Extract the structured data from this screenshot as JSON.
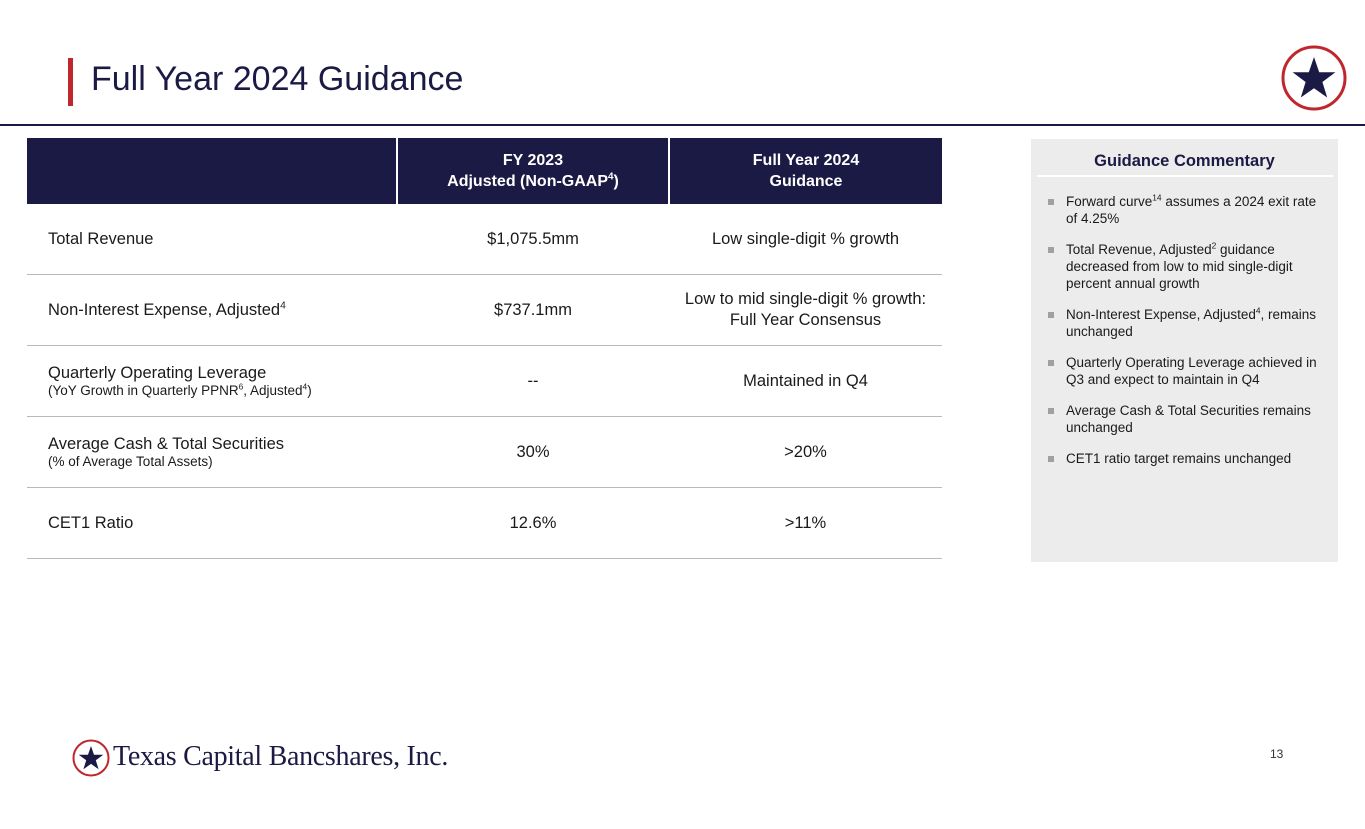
{
  "page": {
    "title": "Full Year 2024 Guidance",
    "page_number": "13"
  },
  "table": {
    "headers": [
      {
        "line1": "",
        "line2": ""
      },
      {
        "line1": "FY 2023",
        "line2": "Adjusted (Non-GAAP",
        "sup": "4",
        "tail": ")"
      },
      {
        "line1": "Full Year 2024",
        "line2": "Guidance"
      }
    ],
    "rows": [
      {
        "label": "Total Revenue",
        "fy2023": "$1,075.5mm",
        "guidance": "Low single-digit % growth"
      },
      {
        "label": "Non-Interest Expense, Adjusted",
        "label_sup": "4",
        "fy2023": "$737.1mm",
        "guidance_line1": "Low to mid single-digit % growth:",
        "guidance_line2": "Full Year Consensus"
      },
      {
        "label": "Quarterly Operating Leverage",
        "sub_a": "(YoY Growth in Quarterly PPNR",
        "sub_sup1": "6",
        "sub_b": ", Adjusted",
        "sub_sup2": "4",
        "sub_c": ")",
        "fy2023": "--",
        "guidance": "Maintained in Q4"
      },
      {
        "label": "Average Cash & Total Securities",
        "sub": "(% of Average Total Assets)",
        "fy2023": "30%",
        "guidance": ">20%"
      },
      {
        "label": "CET1 Ratio",
        "fy2023": "12.6%",
        "guidance": ">11%"
      }
    ]
  },
  "commentary": {
    "title": "Guidance Commentary",
    "bullets": [
      {
        "a": "Forward curve",
        "sup": "14",
        "b": " assumes a 2024 exit rate of 4.25%"
      },
      {
        "a": "Total Revenue, Adjusted",
        "sup": "2",
        "b": " guidance decreased from low to mid single-digit percent annual growth"
      },
      {
        "a": "Non-Interest Expense, Adjusted",
        "sup": "4",
        "b": ", remains unchanged"
      },
      {
        "a": "Quarterly Operating Leverage achieved in Q3 and expect to maintain in Q4",
        "sup": "",
        "b": ""
      },
      {
        "a": "Average Cash & Total Securities remains unchanged",
        "sup": "",
        "b": ""
      },
      {
        "a": "CET1 ratio target remains unchanged",
        "sup": "",
        "b": ""
      }
    ]
  },
  "footer": {
    "company": "Texas Capital Bancshares, Inc."
  },
  "colors": {
    "navy": "#1b1a44",
    "red": "#c0272d",
    "panel_bg": "#ececec",
    "row_rule": "#b9b9b9"
  },
  "icons": [
    "star-badge-icon",
    "footer-star-logo-icon",
    "bullet-square-icon"
  ]
}
